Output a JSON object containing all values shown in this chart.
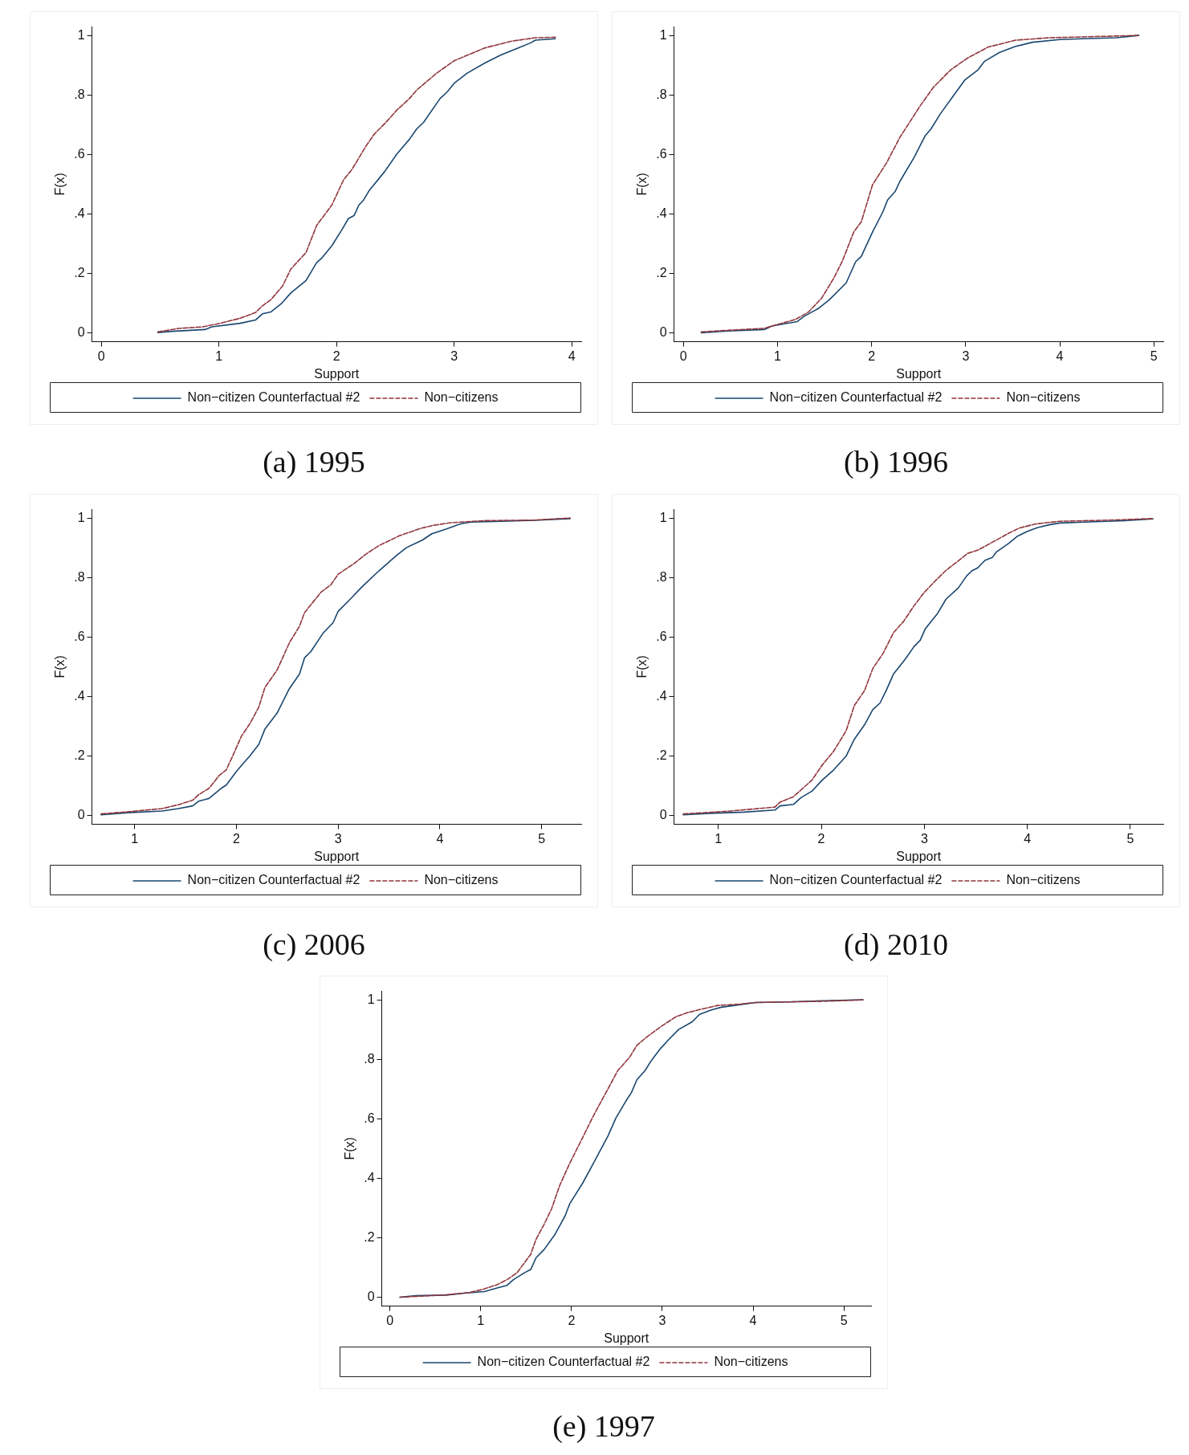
{
  "chart_data": [
    {
      "type": "line",
      "title": "(a) 1995",
      "xlabel": "Support",
      "ylabel": "F(x)",
      "xlim": [
        -0.08,
        4.08
      ],
      "xticks": [
        0,
        1,
        2,
        3,
        4
      ],
      "ylim": [
        -0.03,
        1.03
      ],
      "yticks": [
        {
          "value": 0,
          "label": "0"
        },
        {
          "value": 0.2,
          "label": ".2"
        },
        {
          "value": 0.4,
          "label": ".4"
        },
        {
          "value": 0.6,
          "label": ".6"
        },
        {
          "value": 0.8,
          "label": ".8"
        },
        {
          "value": 1,
          "label": "1"
        }
      ],
      "legend": "bottom",
      "series": [
        {
          "name": "Non−citizen Counterfactual #2",
          "color": "#1a476f",
          "line_style": "solid",
          "x": [
            0.48,
            0.6,
            0.88,
            0.94,
            1.18,
            1.31,
            1.37,
            1.44,
            1.53,
            1.61,
            1.74,
            1.83,
            1.87,
            1.96,
            2.05,
            2.1,
            2.15,
            2.19,
            2.23,
            2.28,
            2.41,
            2.51,
            2.62,
            2.68,
            2.74,
            2.88,
            2.94,
            3.0,
            3.11,
            3.26,
            3.4,
            3.54,
            3.65,
            3.69,
            3.86
          ],
          "values": [
            0.001,
            0.005,
            0.011,
            0.02,
            0.032,
            0.043,
            0.064,
            0.07,
            0.098,
            0.134,
            0.176,
            0.236,
            0.25,
            0.293,
            0.35,
            0.384,
            0.395,
            0.43,
            0.447,
            0.48,
            0.543,
            0.6,
            0.651,
            0.685,
            0.708,
            0.788,
            0.81,
            0.839,
            0.873,
            0.907,
            0.935,
            0.957,
            0.975,
            0.984,
            0.989
          ]
        },
        {
          "name": "Non−citizens",
          "color": "#90353b",
          "line_style": "dashed",
          "x": [
            0.48,
            0.66,
            0.86,
            1.01,
            1.18,
            1.31,
            1.37,
            1.44,
            1.54,
            1.61,
            1.74,
            1.83,
            1.96,
            2.06,
            2.13,
            2.25,
            2.32,
            2.42,
            2.51,
            2.62,
            2.68,
            2.85,
            3.0,
            3.26,
            3.49,
            3.69,
            3.86
          ],
          "values": [
            0.003,
            0.015,
            0.02,
            0.032,
            0.049,
            0.068,
            0.091,
            0.111,
            0.157,
            0.214,
            0.27,
            0.361,
            0.43,
            0.515,
            0.549,
            0.628,
            0.668,
            0.708,
            0.748,
            0.788,
            0.816,
            0.873,
            0.915,
            0.958,
            0.981,
            0.992,
            0.994
          ]
        }
      ]
    },
    {
      "type": "line",
      "title": "(b) 1996",
      "xlabel": "Support",
      "ylabel": "F(x)",
      "xlim": [
        -0.1,
        5.1
      ],
      "xticks": [
        0,
        1,
        2,
        3,
        4,
        5
      ],
      "ylim": [
        -0.03,
        1.03
      ],
      "yticks": [
        {
          "value": 0,
          "label": "0"
        },
        {
          "value": 0.2,
          "label": ".2"
        },
        {
          "value": 0.4,
          "label": ".4"
        },
        {
          "value": 0.6,
          "label": ".6"
        },
        {
          "value": 0.8,
          "label": ".8"
        },
        {
          "value": 1,
          "label": "1"
        }
      ],
      "legend": "bottom",
      "series": [
        {
          "name": "Non−citizen Counterfactual #2",
          "color": "#1a476f",
          "line_style": "solid",
          "x": [
            0.19,
            0.47,
            0.86,
            0.94,
            1.21,
            1.28,
            1.44,
            1.55,
            1.73,
            1.83,
            1.89,
            2.01,
            2.12,
            2.17,
            2.25,
            2.3,
            2.45,
            2.57,
            2.63,
            2.73,
            2.86,
            2.99,
            3.13,
            3.2,
            3.36,
            3.53,
            3.71,
            4.0,
            4.24,
            4.6,
            4.84
          ],
          "values": [
            0.0,
            0.006,
            0.011,
            0.023,
            0.038,
            0.055,
            0.083,
            0.111,
            0.168,
            0.239,
            0.257,
            0.339,
            0.407,
            0.447,
            0.475,
            0.509,
            0.589,
            0.663,
            0.685,
            0.736,
            0.793,
            0.85,
            0.884,
            0.913,
            0.943,
            0.963,
            0.977,
            0.986,
            0.989,
            0.992,
            1.0
          ]
        },
        {
          "name": "Non−citizens",
          "color": "#90353b",
          "line_style": "dashed",
          "x": [
            0.19,
            0.5,
            0.86,
            1.0,
            1.19,
            1.33,
            1.47,
            1.6,
            1.69,
            1.81,
            1.89,
            2.01,
            2.16,
            2.3,
            2.52,
            2.66,
            2.84,
            3.02,
            3.24,
            3.53,
            3.88,
            4.24,
            4.84
          ],
          "values": [
            0.003,
            0.009,
            0.015,
            0.028,
            0.045,
            0.07,
            0.117,
            0.185,
            0.242,
            0.339,
            0.373,
            0.498,
            0.572,
            0.657,
            0.765,
            0.827,
            0.884,
            0.924,
            0.961,
            0.984,
            0.992,
            0.995,
            1.0
          ]
        }
      ]
    },
    {
      "type": "line",
      "title": "(c) 2006",
      "xlabel": "Support",
      "ylabel": "F(x)",
      "xlim": [
        0.58,
        5.39
      ],
      "xticks": [
        1,
        2,
        3,
        4,
        5
      ],
      "ylim": [
        -0.03,
        1.03
      ],
      "yticks": [
        {
          "value": 0,
          "label": "0"
        },
        {
          "value": 0.2,
          "label": ".2"
        },
        {
          "value": 0.4,
          "label": ".4"
        },
        {
          "value": 0.6,
          "label": ".6"
        },
        {
          "value": 0.8,
          "label": ".8"
        },
        {
          "value": 1,
          "label": "1"
        }
      ],
      "legend": "bottom",
      "series": [
        {
          "name": "Non−citizen Counterfactual #2",
          "color": "#1a476f",
          "line_style": "solid",
          "x": [
            0.67,
            0.93,
            1.27,
            1.43,
            1.57,
            1.63,
            1.73,
            1.85,
            1.9,
            2.0,
            2.07,
            2.13,
            2.22,
            2.28,
            2.4,
            2.52,
            2.62,
            2.67,
            2.73,
            2.85,
            2.95,
            3.0,
            3.13,
            3.23,
            3.4,
            3.57,
            3.67,
            3.83,
            3.92,
            4.07,
            4.2,
            4.3,
            4.6,
            4.93,
            5.28
          ],
          "values": [
            0.002,
            0.009,
            0.015,
            0.023,
            0.032,
            0.048,
            0.057,
            0.091,
            0.102,
            0.148,
            0.176,
            0.199,
            0.239,
            0.29,
            0.344,
            0.426,
            0.475,
            0.53,
            0.55,
            0.612,
            0.648,
            0.686,
            0.731,
            0.767,
            0.822,
            0.873,
            0.9,
            0.926,
            0.947,
            0.964,
            0.98,
            0.986,
            0.989,
            0.992,
            0.998
          ]
        },
        {
          "name": "Non−citizens",
          "color": "#90353b",
          "line_style": "dashed",
          "x": [
            0.67,
            0.93,
            1.27,
            1.43,
            1.57,
            1.63,
            1.73,
            1.83,
            1.9,
            1.97,
            2.05,
            2.13,
            2.22,
            2.28,
            2.4,
            2.52,
            2.62,
            2.67,
            2.83,
            2.93,
            3.0,
            3.17,
            3.27,
            3.4,
            3.6,
            3.8,
            3.93,
            4.1,
            4.43,
            4.93,
            5.28
          ],
          "values": [
            0.005,
            0.012,
            0.023,
            0.036,
            0.051,
            0.07,
            0.091,
            0.134,
            0.153,
            0.205,
            0.267,
            0.307,
            0.364,
            0.43,
            0.489,
            0.58,
            0.636,
            0.682,
            0.75,
            0.776,
            0.811,
            0.85,
            0.878,
            0.907,
            0.94,
            0.964,
            0.975,
            0.984,
            0.991,
            0.993,
            1.0
          ]
        }
      ]
    },
    {
      "type": "line",
      "title": "(d) 2010",
      "xlabel": "Support",
      "ylabel": "F(x)",
      "xlim": [
        0.57,
        5.32
      ],
      "xticks": [
        1,
        2,
        3,
        4,
        5
      ],
      "ylim": [
        -0.03,
        1.03
      ],
      "yticks": [
        {
          "value": 0,
          "label": "0"
        },
        {
          "value": 0.2,
          "label": ".2"
        },
        {
          "value": 0.4,
          "label": ".4"
        },
        {
          "value": 0.6,
          "label": ".6"
        },
        {
          "value": 0.8,
          "label": ".8"
        },
        {
          "value": 1,
          "label": "1"
        }
      ],
      "legend": "bottom",
      "series": [
        {
          "name": "Non−citizen Counterfactual #2",
          "color": "#1a476f",
          "line_style": "solid",
          "x": [
            0.66,
            0.92,
            1.25,
            1.55,
            1.6,
            1.73,
            1.8,
            1.91,
            2.01,
            2.12,
            2.24,
            2.32,
            2.42,
            2.5,
            2.57,
            2.63,
            2.7,
            2.82,
            2.9,
            2.96,
            3.01,
            3.13,
            3.21,
            3.33,
            3.41,
            3.46,
            3.52,
            3.59,
            3.66,
            3.7,
            3.82,
            3.9,
            4.0,
            4.1,
            4.21,
            4.31,
            4.54,
            4.94,
            5.22
          ],
          "values": [
            0.002,
            0.007,
            0.011,
            0.018,
            0.032,
            0.037,
            0.059,
            0.082,
            0.119,
            0.153,
            0.199,
            0.256,
            0.305,
            0.356,
            0.378,
            0.42,
            0.475,
            0.528,
            0.568,
            0.589,
            0.628,
            0.68,
            0.727,
            0.765,
            0.805,
            0.822,
            0.833,
            0.858,
            0.867,
            0.886,
            0.915,
            0.938,
            0.955,
            0.968,
            0.977,
            0.983,
            0.986,
            0.991,
            0.997
          ]
        },
        {
          "name": "Non−citizens",
          "color": "#90353b",
          "line_style": "dashed",
          "x": [
            0.66,
            1.09,
            1.55,
            1.6,
            1.73,
            1.8,
            1.91,
            2.01,
            2.12,
            2.24,
            2.32,
            2.42,
            2.5,
            2.6,
            2.7,
            2.8,
            2.9,
            3.0,
            3.11,
            3.21,
            3.36,
            3.42,
            3.52,
            3.69,
            3.82,
            3.92,
            4.08,
            4.31,
            4.71,
            5.22
          ],
          "values": [
            0.005,
            0.014,
            0.028,
            0.045,
            0.063,
            0.085,
            0.119,
            0.17,
            0.216,
            0.284,
            0.369,
            0.42,
            0.494,
            0.545,
            0.614,
            0.653,
            0.705,
            0.75,
            0.79,
            0.824,
            0.864,
            0.881,
            0.892,
            0.924,
            0.949,
            0.966,
            0.98,
            0.989,
            0.992,
            0.998
          ]
        }
      ]
    },
    {
      "type": "line",
      "title": "(e) 1997",
      "xlabel": "Support",
      "ylabel": "F(x)",
      "xlim": [
        -0.09,
        5.3
      ],
      "xticks": [
        0,
        1,
        2,
        3,
        4,
        5
      ],
      "ylim": [
        -0.03,
        1.03
      ],
      "yticks": [
        {
          "value": 0,
          "label": "0"
        },
        {
          "value": 0.2,
          "label": ".2"
        },
        {
          "value": 0.4,
          "label": ".4"
        },
        {
          "value": 0.6,
          "label": ".6"
        },
        {
          "value": 0.8,
          "label": ".8"
        },
        {
          "value": 1,
          "label": "1"
        }
      ],
      "legend": "bottom",
      "series": [
        {
          "name": "Non−citizen Counterfactual #2",
          "color": "#1a476f",
          "line_style": "solid",
          "x": [
            0.11,
            0.28,
            0.62,
            0.84,
            1.04,
            1.18,
            1.29,
            1.36,
            1.48,
            1.55,
            1.61,
            1.7,
            1.78,
            1.82,
            1.93,
            1.98,
            2.12,
            2.23,
            2.31,
            2.4,
            2.49,
            2.6,
            2.66,
            2.72,
            2.81,
            2.88,
            2.98,
            3.07,
            3.18,
            3.33,
            3.41,
            3.54,
            3.65,
            3.84,
            4.03,
            4.4,
            4.78,
            5.21
          ],
          "values": [
            0.0,
            0.005,
            0.007,
            0.014,
            0.019,
            0.031,
            0.04,
            0.059,
            0.082,
            0.093,
            0.133,
            0.161,
            0.195,
            0.212,
            0.274,
            0.314,
            0.382,
            0.444,
            0.49,
            0.541,
            0.603,
            0.66,
            0.688,
            0.731,
            0.762,
            0.796,
            0.836,
            0.866,
            0.9,
            0.926,
            0.951,
            0.966,
            0.975,
            0.983,
            0.991,
            0.993,
            0.997,
            1.0
          ]
        },
        {
          "name": "Non−citizens",
          "color": "#90353b",
          "line_style": "dashed",
          "x": [
            0.11,
            0.62,
            0.88,
            1.03,
            1.18,
            1.29,
            1.4,
            1.55,
            1.61,
            1.7,
            1.78,
            1.87,
            1.98,
            2.12,
            2.23,
            2.31,
            2.42,
            2.51,
            2.64,
            2.72,
            2.83,
            2.98,
            3.15,
            3.28,
            3.41,
            3.61,
            3.84,
            4.03,
            4.78,
            5.21
          ],
          "values": [
            0.0,
            0.008,
            0.016,
            0.027,
            0.042,
            0.059,
            0.082,
            0.144,
            0.195,
            0.246,
            0.297,
            0.376,
            0.45,
            0.535,
            0.603,
            0.649,
            0.711,
            0.762,
            0.807,
            0.847,
            0.875,
            0.909,
            0.943,
            0.957,
            0.967,
            0.981,
            0.985,
            0.991,
            0.995,
            1.0
          ]
        }
      ]
    }
  ]
}
